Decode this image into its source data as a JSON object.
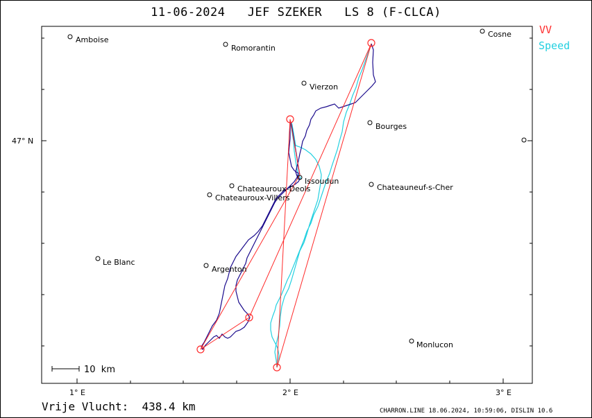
{
  "title": "11-06-2024   JEF SZEKER   LS 8 (F-CLCA)",
  "legend": {
    "vv": "VV",
    "speed": "Speed"
  },
  "colors": {
    "track": "#1a0a8c",
    "speed": "#22d0e0",
    "vv": "#ff2a2a",
    "frame": "#000000"
  },
  "axes": {
    "x_ticks": [
      "1° E",
      "2° E",
      "3° E"
    ],
    "y_ticks": [
      "47° N"
    ]
  },
  "scale_bar": "10  km",
  "towns": [
    "Amboise",
    "Romorantin",
    "Vierzon",
    "Cosne",
    "Bourges",
    "Issoudun",
    "Chateauroux-Deols",
    "Chateauroux-Villers",
    "Chateauneuf-s-Cher",
    "Le Blanc",
    "Argenton",
    "Monlucon"
  ],
  "footer": {
    "distance_label": "Vrije Vlucht:  438.4 km",
    "credit": "CHARRON.LINE 18.06.2024, 10:59:06, DISLIN 10.6"
  }
}
